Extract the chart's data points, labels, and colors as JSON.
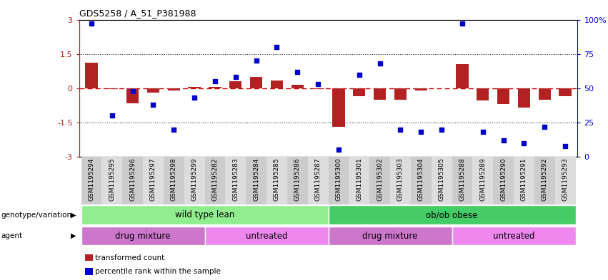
{
  "title": "GDS5258 / A_51_P381988",
  "samples": [
    "GSM1195294",
    "GSM1195295",
    "GSM1195296",
    "GSM1195297",
    "GSM1195298",
    "GSM1195299",
    "GSM1195282",
    "GSM1195283",
    "GSM1195284",
    "GSM1195285",
    "GSM1195286",
    "GSM1195287",
    "GSM1195300",
    "GSM1195301",
    "GSM1195302",
    "GSM1195303",
    "GSM1195304",
    "GSM1195305",
    "GSM1195288",
    "GSM1195289",
    "GSM1195290",
    "GSM1195291",
    "GSM1195292",
    "GSM1195293"
  ],
  "bar_values": [
    1.1,
    -0.05,
    -0.65,
    -0.2,
    -0.1,
    0.05,
    0.05,
    0.3,
    0.5,
    0.35,
    0.15,
    -0.05,
    -1.7,
    -0.35,
    -0.5,
    -0.5,
    -0.1,
    0.0,
    1.05,
    -0.55,
    -0.7,
    -0.85,
    -0.5,
    -0.35
  ],
  "scatter_values": [
    97,
    30,
    48,
    38,
    20,
    43,
    55,
    58,
    70,
    80,
    62,
    53,
    5,
    60,
    68,
    20,
    18,
    20,
    97,
    18,
    12,
    10,
    22,
    8
  ],
  "ylim": [
    -3,
    3
  ],
  "y2lim": [
    0,
    100
  ],
  "yticks": [
    -3,
    -1.5,
    0,
    1.5,
    3
  ],
  "ytick_labels": [
    "-3",
    "-1.5",
    "0",
    "1.5",
    "3"
  ],
  "y2ticks": [
    0,
    25,
    50,
    75,
    100
  ],
  "y2tick_labels": [
    "0",
    "25",
    "50",
    "75",
    "100%"
  ],
  "bar_color": "#b22222",
  "scatter_color": "#0000cc",
  "hline_color": "#cc0000",
  "dotted_color": "#111111",
  "genotype_groups": [
    {
      "label": "wild type lean",
      "start": 0,
      "end": 11,
      "color": "#90EE90"
    },
    {
      "label": "ob/ob obese",
      "start": 12,
      "end": 23,
      "color": "#44cc66"
    }
  ],
  "agent_groups": [
    {
      "label": "drug mixture",
      "start": 0,
      "end": 5,
      "color": "#cc77cc"
    },
    {
      "label": "untreated",
      "start": 6,
      "end": 11,
      "color": "#ee88ee"
    },
    {
      "label": "drug mixture",
      "start": 12,
      "end": 17,
      "color": "#cc77cc"
    },
    {
      "label": "untreated",
      "start": 18,
      "end": 23,
      "color": "#ee88ee"
    }
  ],
  "legend_labels": [
    "transformed count",
    "percentile rank within the sample"
  ],
  "legend_colors": [
    "#b22222",
    "#0000cc"
  ],
  "row_labels": [
    "genotype/variation",
    "agent"
  ],
  "bg_color": "#e8e8e8"
}
